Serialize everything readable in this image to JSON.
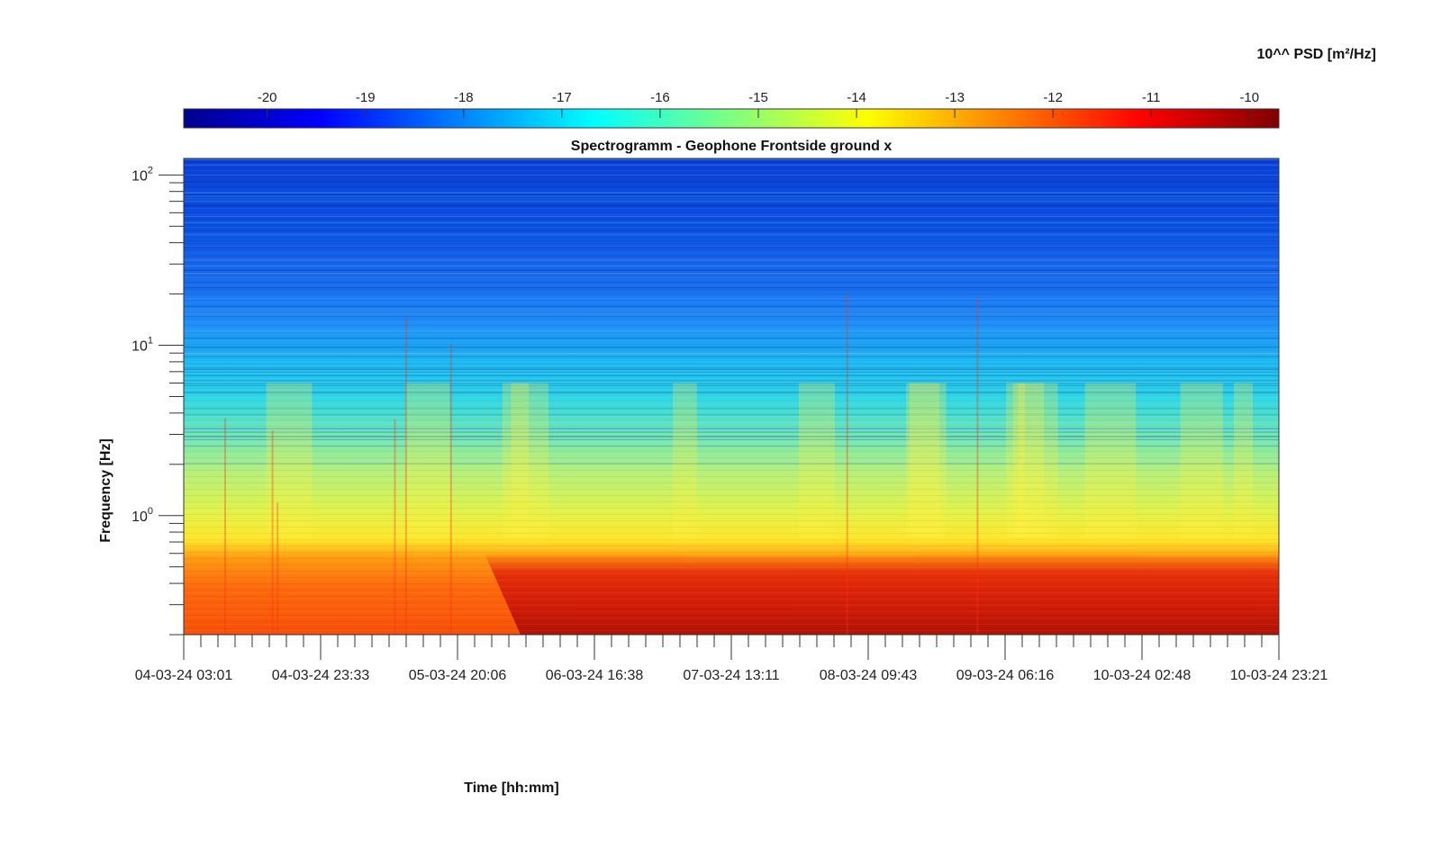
{
  "chart_data": {
    "type": "heatmap",
    "title": "Spectrogramm - Geophone Frontside ground x",
    "xlabel": "Time [hh:mm]",
    "ylabel": "Frequency [Hz]",
    "y_scale": "log",
    "ylim": [
      0.2,
      125
    ],
    "x_ticks": [
      "04-03-24 03:01",
      "04-03-24 23:33",
      "05-03-24 20:06",
      "06-03-24 16:38",
      "07-03-24 13:11",
      "08-03-24 09:43",
      "09-03-24 06:16",
      "10-03-24 02:48",
      "10-03-24 23:21"
    ],
    "y_ticks": [
      {
        "value": 1,
        "base": "10",
        "exp": "0"
      },
      {
        "value": 10,
        "base": "10",
        "exp": "1"
      },
      {
        "value": 100,
        "base": "10",
        "exp": "2"
      }
    ],
    "colorbar": {
      "label": "10^^ PSD [m²/Hz]",
      "colormap": "jet",
      "range": [
        -20.85,
        -9.7
      ],
      "ticks": [
        "-20",
        "-19",
        "-18",
        "-17",
        "-16",
        "-15",
        "-14",
        "-13",
        "-12",
        "-11",
        "-10"
      ]
    },
    "psd_log10_profile": [
      {
        "frequency_hz": 0.2,
        "value": -12.0
      },
      {
        "frequency_hz": 0.6,
        "value": -12.6
      },
      {
        "frequency_hz": 0.75,
        "value": -13.9
      },
      {
        "frequency_hz": 1.0,
        "value": -14.6
      },
      {
        "frequency_hz": 2.0,
        "value": -14.8
      },
      {
        "frequency_hz": 5.0,
        "value": -16.4
      },
      {
        "frequency_hz": 10.0,
        "value": -17.2
      },
      {
        "frequency_hz": 20.0,
        "value": -18.0
      },
      {
        "frequency_hz": 50.0,
        "value": -19.0
      },
      {
        "frequency_hz": 100.0,
        "value": -19.4
      }
    ],
    "quiet_low_band_period": {
      "start": "05-03-24 20:06",
      "value_below_0.6_hz": -11.0
    }
  }
}
